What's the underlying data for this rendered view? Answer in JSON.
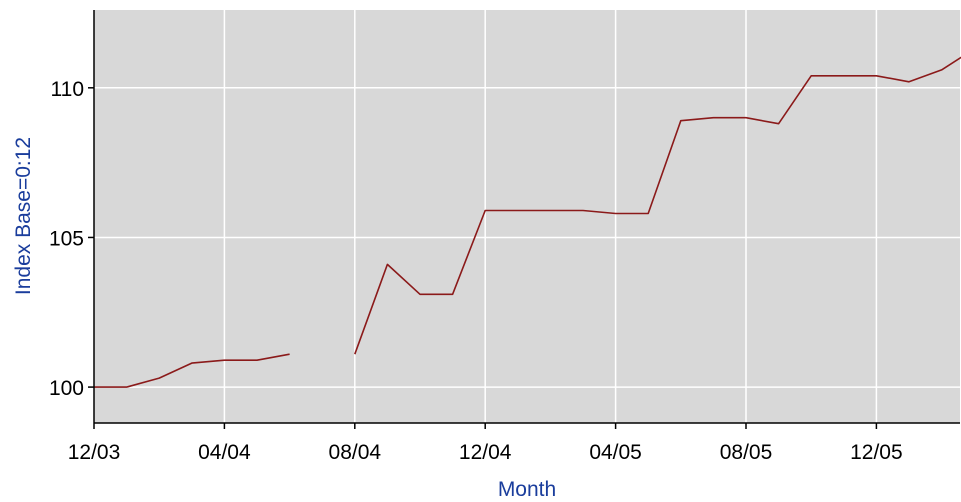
{
  "chart_data": {
    "type": "line",
    "title": "",
    "xlabel": "Month",
    "ylabel": "Index Base=0:12",
    "x_tick_labels": [
      "12/03",
      "04/04",
      "08/04",
      "12/04",
      "04/05",
      "08/05",
      "12/05"
    ],
    "y_tick_values": [
      100,
      105,
      110
    ],
    "ylim": [
      98.8,
      112.6
    ],
    "grid": true,
    "legend": "none",
    "colors": {
      "line": "#8b1a1a",
      "plot_background": "#d8d8d8",
      "grid": "#ffffff",
      "axis_title": "#1a3d9c"
    },
    "series": [
      {
        "segments": [
          [
            {
              "x": "2003-12",
              "y": 100.0
            },
            {
              "x": "2004-01",
              "y": 100.0
            },
            {
              "x": "2004-02",
              "y": 100.3
            },
            {
              "x": "2004-03",
              "y": 100.8
            },
            {
              "x": "2004-04",
              "y": 100.9
            },
            {
              "x": "2004-05",
              "y": 100.9
            },
            {
              "x": "2004-06",
              "y": 101.1
            }
          ],
          [
            {
              "x": "2004-08",
              "y": 101.1
            },
            {
              "x": "2004-09",
              "y": 104.1
            },
            {
              "x": "2004-10",
              "y": 103.1
            },
            {
              "x": "2004-11",
              "y": 103.1
            },
            {
              "x": "2004-12",
              "y": 105.9
            },
            {
              "x": "2005-01",
              "y": 105.9
            },
            {
              "x": "2005-02",
              "y": 105.9
            },
            {
              "x": "2005-03",
              "y": 105.9
            },
            {
              "x": "2005-04",
              "y": 105.8
            },
            {
              "x": "2005-05",
              "y": 105.8
            },
            {
              "x": "2005-06",
              "y": 108.9
            },
            {
              "x": "2005-07",
              "y": 109.0
            },
            {
              "x": "2005-08",
              "y": 109.0
            },
            {
              "x": "2005-09",
              "y": 108.8
            },
            {
              "x": "2005-10",
              "y": 110.4
            },
            {
              "x": "2005-11",
              "y": 110.4
            },
            {
              "x": "2005-12",
              "y": 110.4
            },
            {
              "x": "2006-01",
              "y": 110.2
            },
            {
              "x": "2006-02",
              "y": 110.6
            },
            {
              "x": "2006-03",
              "y": 111.3
            }
          ]
        ]
      }
    ]
  }
}
